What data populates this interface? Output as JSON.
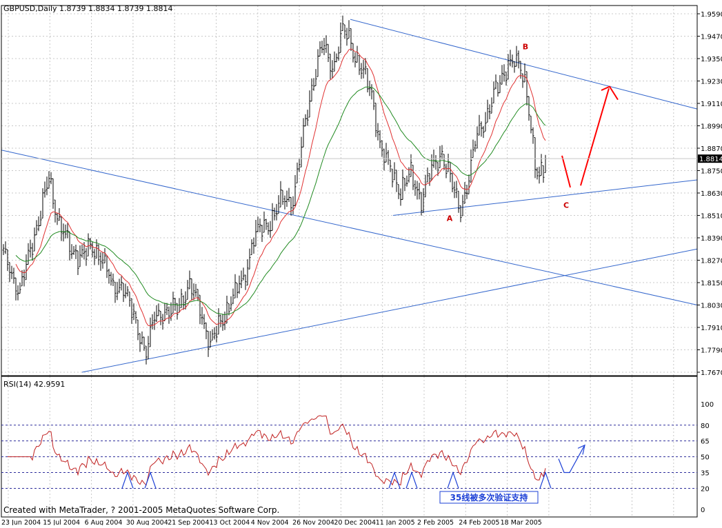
{
  "chart_data": {
    "type": "bar",
    "title": "GBPUSD,Daily  1.8739 1.8834 1.8739 1.8814",
    "symbol": "GBPUSD",
    "timeframe": "Daily",
    "last_bar": {
      "open": 1.8739,
      "high": 1.8834,
      "low": 1.8739,
      "close": 1.8814
    },
    "current_price_label": "1.8814",
    "price_axis": {
      "ylim": [
        1.767,
        1.959
      ],
      "tick_labels": [
        "1.9590",
        "1.9470",
        "1.9350",
        "1.9230",
        "1.9110",
        "1.8990",
        "1.8870",
        "1.8750",
        "1.8630",
        "1.8510",
        "1.8390",
        "1.8270",
        "1.8150",
        "1.8030",
        "1.7910",
        "1.7790",
        "1.7670"
      ]
    },
    "x_axis": {
      "tick_labels": [
        "23 Jun 2004",
        "15 Jul 2004",
        "6 Aug 2004",
        "30 Aug 2004",
        "21 Sep 2004",
        "13 Oct 2004",
        "4 Nov 2004",
        "26 Nov 2004",
        "20 Dec 2004",
        "11 Jan 2005",
        "2 Feb 2005",
        "24 Feb 2005",
        "18 Mar 2005"
      ]
    },
    "grid": true,
    "wave_labels": [
      "A",
      "B",
      "C"
    ],
    "colors": {
      "bars": "#000000",
      "ma_fast": "#e03030",
      "ma_slow": "#208a20",
      "trendlines": "#3366cc",
      "annotation": "#ff0000"
    },
    "anchors": [
      [
        0,
        1.83
      ],
      [
        8,
        1.81
      ],
      [
        16,
        1.845
      ],
      [
        22,
        1.87
      ],
      [
        25,
        1.855
      ],
      [
        33,
        1.83
      ],
      [
        42,
        1.832
      ],
      [
        48,
        1.83
      ],
      [
        53,
        1.81
      ],
      [
        58,
        1.815
      ],
      [
        63,
        1.795
      ],
      [
        69,
        1.779
      ],
      [
        73,
        1.795
      ],
      [
        78,
        1.8
      ],
      [
        84,
        1.8
      ],
      [
        90,
        1.815
      ],
      [
        95,
        1.8
      ],
      [
        100,
        1.783
      ],
      [
        105,
        1.792
      ],
      [
        110,
        1.807
      ],
      [
        116,
        1.815
      ],
      [
        121,
        1.84
      ],
      [
        127,
        1.845
      ],
      [
        134,
        1.858
      ],
      [
        140,
        1.86
      ],
      [
        146,
        1.9
      ],
      [
        150,
        1.925
      ],
      [
        154,
        1.942
      ],
      [
        159,
        1.93
      ],
      [
        164,
        1.95
      ],
      [
        167,
        1.945
      ],
      [
        173,
        1.93
      ],
      [
        178,
        1.915
      ],
      [
        183,
        1.885
      ],
      [
        187,
        1.875
      ],
      [
        192,
        1.865
      ],
      [
        197,
        1.872
      ],
      [
        202,
        1.86
      ],
      [
        207,
        1.875
      ],
      [
        212,
        1.885
      ],
      [
        216,
        1.87
      ],
      [
        219,
        1.86
      ],
      [
        221,
        1.855
      ],
      [
        225,
        1.87
      ],
      [
        229,
        1.895
      ],
      [
        234,
        1.905
      ],
      [
        239,
        1.92
      ],
      [
        244,
        1.933
      ],
      [
        249,
        1.931
      ],
      [
        252,
        1.925
      ],
      [
        255,
        1.9
      ],
      [
        257,
        1.875
      ],
      [
        259,
        1.87
      ],
      [
        262,
        1.88
      ]
    ],
    "series": [
      {
        "name": "",
        "kind": "price_bars"
      },
      {
        "name": "",
        "kind": "moving_average",
        "color": "#e03030"
      },
      {
        "name": "",
        "kind": "moving_average",
        "color": "#208a20"
      }
    ],
    "indicator": {
      "title": "RSI(14) 42.9591",
      "name": "RSI(14)",
      "value": 42.9591,
      "ylim": [
        0,
        100
      ],
      "levels": [
        80,
        65,
        50,
        35,
        20
      ],
      "tick_labels": [
        "100",
        "80",
        "65",
        "50",
        "35",
        "20",
        "0"
      ],
      "annotation": "35线被多次验证支持",
      "color": "#c02020"
    },
    "watermark": "Created with MetaTrader, ? 2001-2005 MetaQuotes Software Corp."
  }
}
